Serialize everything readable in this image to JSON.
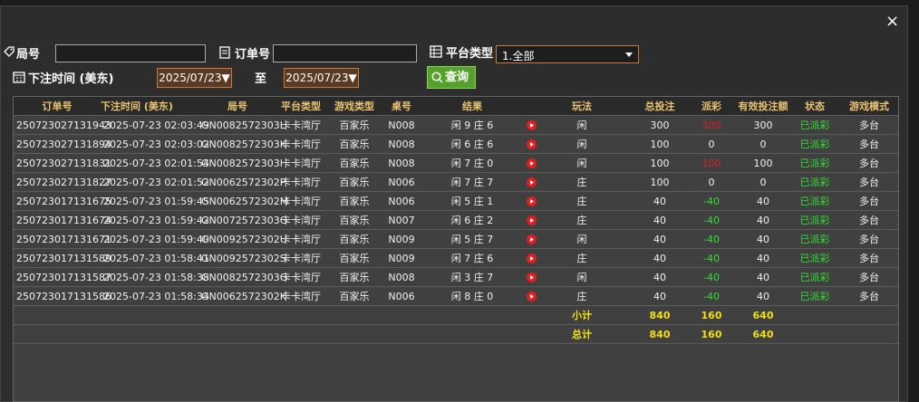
{
  "close": "×",
  "filters": {
    "round_label": "局号",
    "order_label": "订单号",
    "platform_label": "平台类型",
    "platform_value": "1.全部",
    "time_label": "下注时间 (美东)",
    "date_from": "2025/07/23▼",
    "to_label": "至",
    "date_to": "2025/07/23▼",
    "query_button": "查询"
  },
  "table": {
    "headers": [
      "订单号",
      "下注时间 (美东)",
      "局号",
      "平台类型",
      "游戏类型",
      "桌号",
      "结果",
      "玩法",
      "总投注",
      "派彩",
      "有效投注额",
      "状态",
      "游戏模式"
    ],
    "rows": [
      [
        "250723027131943",
        "2025-07-23 02:03:49",
        "GN0082572303L",
        "卡卡湾厅",
        "百家乐",
        "N008",
        "闲 9 庄 6",
        "闲",
        "300",
        "300",
        "300",
        "已派彩",
        "多台"
      ],
      [
        "250723027131894",
        "2025-07-23 02:03:02",
        "GN0082572303K",
        "卡卡湾厅",
        "百家乐",
        "N008",
        "闲 6 庄 6",
        "闲",
        "100",
        "0",
        "0",
        "已派彩",
        "多台"
      ],
      [
        "250723027131831",
        "2025-07-23 02:01:54",
        "GN0082572303I",
        "卡卡湾厅",
        "百家乐",
        "N008",
        "闲 7 庄 0",
        "闲",
        "100",
        "100",
        "100",
        "已派彩",
        "多台"
      ],
      [
        "250723027131827",
        "2025-07-23 02:01:52",
        "GN0062572302P",
        "卡卡湾厅",
        "百家乐",
        "N006",
        "闲 7 庄 7",
        "庄",
        "100",
        "0",
        "0",
        "已派彩",
        "多台"
      ],
      [
        "250723017131675",
        "2025-07-23 01:59:45",
        "GN0062572302M",
        "卡卡湾厅",
        "百家乐",
        "N006",
        "闲 5 庄 1",
        "庄",
        "40",
        "-40",
        "40",
        "已派彩",
        "多台"
      ],
      [
        "250723017131674",
        "2025-07-23 01:59:42",
        "GN0072572303G",
        "卡卡湾厅",
        "百家乐",
        "N007",
        "闲 6 庄 2",
        "庄",
        "40",
        "-40",
        "40",
        "已派彩",
        "多台"
      ],
      [
        "250723017131671",
        "2025-07-23 01:59:40",
        "GN0092572302U",
        "卡卡湾厅",
        "百家乐",
        "N009",
        "闲 5 庄 7",
        "闲",
        "40",
        "-40",
        "40",
        "已派彩",
        "多台"
      ],
      [
        "250723017131589",
        "2025-07-23 01:58:41",
        "GN0092572302S",
        "卡卡湾厅",
        "百家乐",
        "N009",
        "闲 7 庄 6",
        "庄",
        "40",
        "-40",
        "40",
        "已派彩",
        "多台"
      ],
      [
        "250723017131587",
        "2025-07-23 01:58:38",
        "GN0082572303G",
        "卡卡湾厅",
        "百家乐",
        "N008",
        "闲 3 庄 7",
        "闲",
        "40",
        "-40",
        "40",
        "已派彩",
        "多台"
      ],
      [
        "250723017131586",
        "2025-07-23 01:58:34",
        "GN0062572302K",
        "卡卡湾厅",
        "百家乐",
        "N006",
        "闲 8 庄 0",
        "庄",
        "40",
        "-40",
        "40",
        "已派彩",
        "多台"
      ]
    ],
    "summary": [
      {
        "label": "小计",
        "values": [
          "840",
          "160",
          "640"
        ]
      },
      {
        "label": "总计",
        "values": [
          "840",
          "160",
          "640"
        ]
      }
    ]
  }
}
